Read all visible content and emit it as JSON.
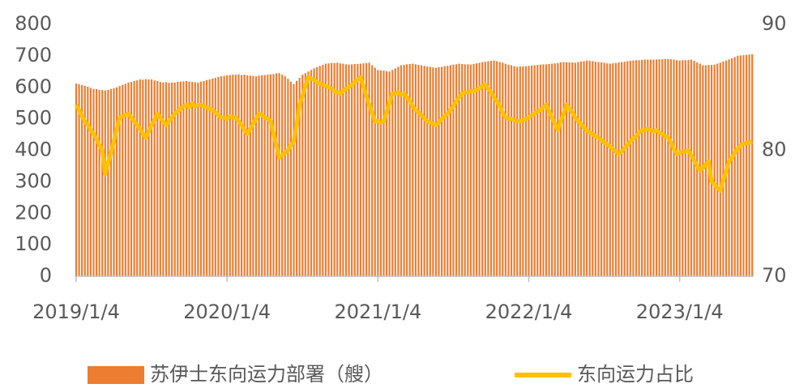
{
  "chart_data": {
    "type": "bar",
    "categories": [
      "2019/1/4",
      null,
      null,
      null,
      null,
      null,
      null,
      null,
      null,
      null,
      null,
      null,
      null,
      null,
      null,
      null,
      null,
      null,
      null,
      null,
      null,
      null,
      null,
      null,
      null,
      null,
      null,
      null,
      null,
      null,
      null,
      null,
      null,
      null,
      null,
      null,
      null,
      null,
      null,
      null,
      null,
      null,
      null,
      null,
      null,
      null,
      null,
      null,
      null,
      null,
      null,
      null,
      "2020/1/4",
      null,
      null,
      null,
      null,
      null,
      null,
      null,
      null,
      null,
      null,
      null,
      null,
      null,
      null,
      null,
      null,
      null,
      null,
      null,
      null,
      null,
      null,
      null,
      null,
      null,
      null,
      null,
      null,
      null,
      null,
      null,
      null,
      null,
      null,
      null,
      null,
      null,
      null,
      null,
      null,
      null,
      null,
      null,
      null,
      null,
      null,
      null,
      null,
      null,
      null,
      null,
      "2021/1/4",
      null,
      null,
      null,
      null,
      null,
      null,
      null,
      null,
      null,
      null,
      null,
      null,
      null,
      null,
      null,
      null,
      null,
      null,
      null,
      null,
      null,
      null,
      null,
      null,
      null,
      null,
      null,
      null,
      null,
      null,
      null,
      null,
      null,
      null,
      null,
      null,
      null,
      null,
      null,
      null,
      null,
      null,
      null,
      null,
      null,
      null,
      null,
      null,
      null,
      null,
      null,
      "2022/1/4",
      null,
      null,
      null,
      null,
      null,
      null,
      null,
      null,
      null,
      null,
      null,
      null,
      null,
      null,
      null,
      null,
      null,
      null,
      null,
      null,
      null,
      null,
      null,
      null,
      null,
      null,
      null,
      null,
      null,
      null,
      null,
      null,
      null,
      null,
      null,
      null,
      null,
      null,
      null,
      null,
      null,
      null,
      null,
      null,
      null,
      null,
      null,
      null,
      null,
      null,
      null,
      "2023/1/4",
      null,
      null,
      null,
      null,
      null,
      null,
      null,
      null,
      null,
      null,
      null,
      null,
      null,
      null,
      null,
      null,
      null,
      null,
      null,
      null,
      null,
      null,
      null,
      null,
      null
    ],
    "series": [
      {
        "name": "苏伊士东向运力部署（艘）",
        "type": "bar",
        "color": "#ED7D31",
        "values": [
          612,
          610,
          607,
          605,
          602,
          598,
          595,
          594,
          592,
          591,
          590,
          592,
          595,
          597,
          600,
          604,
          608,
          611,
          615,
          617,
          620,
          622,
          625,
          624,
          626,
          625,
          625,
          622,
          620,
          617,
          615,
          616,
          614,
          615,
          615,
          617,
          618,
          619,
          620,
          618,
          617,
          616,
          615,
          618,
          620,
          623,
          625,
          628,
          630,
          633,
          635,
          636,
          638,
          639,
          640,
          640,
          641,
          639,
          640,
          638,
          637,
          636,
          635,
          637,
          638,
          639,
          640,
          641,
          642,
          644,
          645,
          640,
          635,
          627,
          618,
          610,
          620,
          630,
          640,
          645,
          650,
          655,
          660,
          664,
          668,
          671,
          675,
          676,
          677,
          677,
          678,
          676,
          675,
          673,
          672,
          673,
          674,
          674,
          675,
          676,
          677,
          678,
          670,
          662,
          655,
          654,
          653,
          651,
          650,
          655,
          660,
          665,
          670,
          671,
          673,
          674,
          675,
          673,
          671,
          670,
          668,
          666,
          665,
          663,
          662,
          664,
          665,
          667,
          668,
          670,
          672,
          673,
          675,
          674,
          673,
          673,
          672,
          674,
          676,
          678,
          680,
          681,
          683,
          684,
          685,
          683,
          680,
          678,
          675,
          672,
          670,
          667,
          665,
          666,
          666,
          667,
          668,
          669,
          670,
          671,
          672,
          673,
          673,
          674,
          675,
          676,
          677,
          679,
          680,
          680,
          679,
          679,
          678,
          680,
          682,
          683,
          685,
          684,
          683,
          681,
          680,
          679,
          678,
          676,
          675,
          676,
          677,
          679,
          680,
          681,
          683,
          684,
          685,
          686,
          686,
          687,
          688,
          688,
          688,
          688,
          688,
          689,
          689,
          690,
          690,
          689,
          688,
          686,
          685,
          686,
          686,
          687,
          688,
          684,
          679,
          675,
          670,
          670,
          671,
          671,
          672,
          675,
          678,
          682,
          685,
          689,
          692,
          696,
          700,
          701,
          702,
          703,
          704,
          705
        ]
      },
      {
        "name": "东向运力占比",
        "type": "line",
        "axis": "y2",
        "color": "#FFC000",
        "values": [
          83.6,
          83.2,
          82.7,
          82.3,
          82.0,
          81.6,
          81.3,
          80.9,
          80.4,
          80.0,
          78.1,
          79.0,
          79.8,
          80.7,
          81.7,
          82.6,
          82.7,
          82.8,
          82.9,
          82.6,
          82.3,
          82.0,
          81.7,
          81.3,
          81.0,
          81.5,
          82.0,
          82.4,
          82.9,
          82.6,
          82.3,
          82.0,
          82.3,
          82.6,
          82.9,
          83.1,
          83.3,
          83.5,
          83.6,
          83.4,
          83.7,
          83.5,
          83.6,
          83.6,
          83.5,
          83.4,
          83.3,
          83.2,
          83.0,
          82.8,
          82.6,
          82.6,
          82.5,
          82.7,
          82.6,
          82.6,
          82.3,
          82.0,
          81.6,
          81.3,
          81.7,
          82.1,
          82.5,
          82.9,
          82.8,
          82.6,
          82.5,
          82.3,
          81.3,
          80.4,
          79.4,
          79.6,
          79.8,
          80.0,
          80.4,
          80.7,
          82.1,
          83.6,
          84.3,
          85.1,
          85.8,
          85.7,
          85.6,
          85.4,
          85.3,
          85.2,
          85.1,
          85.0,
          84.9,
          84.7,
          84.6,
          84.5,
          84.7,
          84.9,
          85.0,
          85.2,
          85.4,
          85.6,
          85.8,
          85.1,
          84.3,
          83.6,
          83.0,
          82.3,
          82.3,
          82.2,
          82.3,
          83.0,
          83.8,
          84.5,
          84.5,
          84.6,
          84.4,
          84.5,
          84.2,
          83.9,
          83.5,
          83.2,
          83.0,
          82.8,
          82.5,
          82.3,
          82.2,
          82.1,
          82.0,
          82.2,
          82.5,
          82.7,
          82.9,
          83.2,
          83.5,
          83.9,
          84.2,
          84.5,
          84.6,
          84.6,
          84.7,
          84.7,
          84.8,
          84.9,
          85.1,
          85.2,
          84.9,
          84.6,
          84.2,
          83.9,
          83.5,
          83.0,
          82.6,
          82.5,
          82.5,
          82.4,
          82.3,
          82.3,
          82.4,
          82.5,
          82.6,
          82.8,
          82.9,
          83.1,
          83.2,
          83.4,
          83.6,
          83.1,
          82.6,
          82.1,
          81.6,
          82.3,
          82.9,
          83.6,
          83.3,
          83.0,
          82.6,
          82.3,
          82.1,
          81.8,
          81.6,
          81.4,
          81.3,
          81.1,
          81.0,
          80.8,
          80.6,
          80.5,
          80.3,
          80.1,
          79.9,
          79.7,
          79.9,
          80.2,
          80.4,
          80.7,
          80.9,
          81.1,
          81.4,
          81.6,
          81.6,
          81.7,
          81.6,
          81.5,
          81.6,
          81.4,
          81.3,
          81.1,
          81.0,
          80.6,
          80.1,
          79.7,
          79.8,
          79.9,
          79.9,
          80.0,
          79.6,
          79.2,
          78.8,
          78.4,
          78.6,
          78.9,
          79.1,
          77.5,
          77.3,
          77.0,
          76.8,
          77.6,
          78.3,
          79.1,
          79.4,
          79.8,
          80.1,
          80.4,
          80.5,
          80.6,
          80.6,
          80.7
        ]
      }
    ],
    "ylim": [
      0,
      800
    ],
    "yticks": [
      0,
      100,
      200,
      300,
      400,
      500,
      600,
      700,
      800
    ],
    "y2lim": [
      70,
      90
    ],
    "y2ticks": [
      70,
      80,
      90
    ],
    "grid": false,
    "legend": "bottom"
  }
}
